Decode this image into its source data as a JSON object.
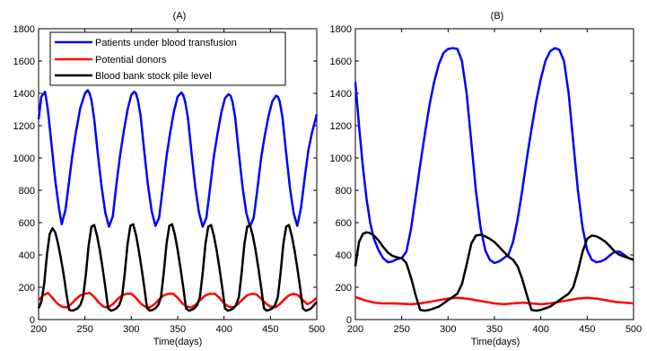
{
  "chart_data": [
    {
      "type": "line",
      "title": "(A)",
      "xlabel": "Time(days)",
      "ylabel": "",
      "xlim": [
        200,
        500
      ],
      "ylim": [
        0,
        1800
      ],
      "xticks": [
        "200",
        "250",
        "300",
        "350",
        "400",
        "450",
        "500"
      ],
      "yticks": [
        "0",
        "200",
        "400",
        "600",
        "800",
        "1000",
        "1200",
        "1400",
        "1600",
        "1800"
      ],
      "grid": false,
      "legend_position": "top-left",
      "series": [
        {
          "name": "Patients under blood transfusion",
          "color": "#0000ff",
          "x": [
            200,
            203,
            207,
            210,
            214,
            218,
            222,
            225,
            229,
            233,
            236,
            240,
            245,
            250,
            253,
            255,
            257,
            260,
            264,
            268,
            272,
            276,
            280,
            284,
            288,
            292,
            296,
            300,
            303,
            305,
            307,
            310,
            314,
            318,
            322,
            326,
            330,
            334,
            338,
            342,
            346,
            350,
            354,
            356,
            358,
            361,
            365,
            369,
            373,
            377,
            381,
            385,
            389,
            393,
            397,
            401,
            405,
            407,
            409,
            412,
            416,
            420,
            424,
            428,
            432,
            436,
            440,
            444,
            448,
            452,
            456,
            458,
            460,
            463,
            467,
            471,
            475,
            479,
            483,
            487,
            491,
            495,
            500
          ],
          "values": [
            1240,
            1380,
            1410,
            1300,
            1080,
            860,
            690,
            590,
            680,
            860,
            1000,
            1150,
            1310,
            1400,
            1420,
            1400,
            1360,
            1240,
            1020,
            820,
            660,
            575,
            640,
            840,
            1020,
            1170,
            1300,
            1390,
            1410,
            1400,
            1360,
            1260,
            1040,
            830,
            670,
            580,
            630,
            820,
            1010,
            1160,
            1290,
            1380,
            1405,
            1390,
            1350,
            1250,
            1030,
            820,
            660,
            575,
            630,
            820,
            1010,
            1150,
            1280,
            1370,
            1395,
            1385,
            1350,
            1250,
            1030,
            820,
            660,
            575,
            630,
            810,
            1000,
            1140,
            1260,
            1350,
            1385,
            1380,
            1350,
            1250,
            1030,
            820,
            660,
            580,
            690,
            880,
            1050,
            1160,
            1270
          ]
        },
        {
          "name": "Potential donors",
          "color": "#ff0000",
          "x": [
            200,
            205,
            210,
            215,
            220,
            225,
            230,
            235,
            240,
            245,
            250,
            255,
            260,
            265,
            270,
            275,
            280,
            285,
            290,
            295,
            300,
            305,
            310,
            315,
            320,
            325,
            330,
            335,
            340,
            345,
            350,
            355,
            360,
            365,
            370,
            375,
            380,
            385,
            390,
            395,
            400,
            405,
            410,
            415,
            420,
            425,
            430,
            435,
            440,
            445,
            450,
            455,
            460,
            465,
            470,
            475,
            480,
            485,
            490,
            495,
            500
          ],
          "values": [
            120,
            150,
            165,
            135,
            100,
            80,
            75,
            95,
            125,
            150,
            160,
            165,
            140,
            105,
            80,
            75,
            95,
            125,
            150,
            160,
            160,
            135,
            100,
            80,
            75,
            95,
            125,
            150,
            160,
            160,
            135,
            100,
            80,
            75,
            95,
            125,
            150,
            160,
            160,
            135,
            100,
            80,
            75,
            95,
            125,
            150,
            160,
            155,
            130,
            100,
            80,
            75,
            95,
            125,
            150,
            160,
            150,
            120,
            95,
            110,
            135
          ]
        },
        {
          "name": "Blood bank stock pile level",
          "color": "#000000",
          "x": [
            200,
            203,
            206,
            209,
            212,
            215,
            218,
            221,
            224,
            227,
            230,
            233,
            236,
            239,
            242,
            245,
            248,
            251,
            254,
            257,
            260,
            263,
            266,
            269,
            272,
            275,
            278,
            281,
            284,
            287,
            290,
            293,
            296,
            299,
            302,
            305,
            308,
            311,
            314,
            317,
            320,
            323,
            326,
            329,
            332,
            335,
            338,
            341,
            344,
            347,
            350,
            353,
            356,
            359,
            362,
            365,
            368,
            371,
            374,
            377,
            380,
            383,
            386,
            389,
            392,
            395,
            398,
            401,
            404,
            407,
            410,
            413,
            416,
            419,
            422,
            425,
            428,
            431,
            434,
            437,
            440,
            443,
            446,
            449,
            452,
            455,
            458,
            461,
            464,
            467,
            470,
            473,
            476,
            479,
            482,
            485,
            488,
            491,
            494,
            497,
            500
          ],
          "values": [
            70,
            110,
            220,
            400,
            530,
            565,
            540,
            470,
            380,
            280,
            160,
            60,
            55,
            60,
            70,
            90,
            140,
            280,
            460,
            575,
            585,
            520,
            430,
            320,
            200,
            70,
            55,
            60,
            70,
            90,
            140,
            290,
            470,
            580,
            590,
            525,
            430,
            320,
            200,
            70,
            55,
            60,
            70,
            90,
            140,
            290,
            470,
            580,
            590,
            525,
            430,
            320,
            200,
            70,
            55,
            60,
            70,
            90,
            140,
            290,
            470,
            575,
            585,
            520,
            430,
            320,
            200,
            70,
            55,
            60,
            70,
            90,
            140,
            290,
            470,
            575,
            585,
            520,
            430,
            320,
            200,
            70,
            55,
            60,
            70,
            90,
            140,
            290,
            470,
            575,
            585,
            520,
            430,
            320,
            200,
            70,
            55,
            60,
            70,
            90,
            110
          ]
        }
      ]
    },
    {
      "type": "line",
      "title": "(B)",
      "xlabel": "Time(days)",
      "ylabel": "",
      "xlim": [
        200,
        500
      ],
      "ylim": [
        0,
        1800
      ],
      "xticks": [
        "200",
        "250",
        "300",
        "350",
        "400",
        "450",
        "500"
      ],
      "yticks": [
        "0",
        "200",
        "400",
        "600",
        "800",
        "1000",
        "1200",
        "1400",
        "1600",
        "1800"
      ],
      "grid": false,
      "series": [
        {
          "color": "#0000ff",
          "x": [
            200,
            204,
            208,
            212,
            216,
            220,
            225,
            230,
            235,
            240,
            245,
            250,
            255,
            260,
            265,
            270,
            275,
            280,
            285,
            290,
            295,
            300,
            305,
            310,
            315,
            320,
            325,
            330,
            335,
            340,
            345,
            350,
            355,
            360,
            365,
            370,
            375,
            380,
            385,
            390,
            395,
            400,
            405,
            410,
            415,
            420,
            425,
            430,
            435,
            440,
            445,
            450,
            455,
            460,
            465,
            470,
            475,
            480,
            485,
            490,
            495,
            500
          ],
          "values": [
            1470,
            1200,
            950,
            750,
            600,
            500,
            430,
            380,
            355,
            360,
            375,
            380,
            420,
            560,
            760,
            960,
            1150,
            1330,
            1470,
            1580,
            1650,
            1675,
            1680,
            1675,
            1600,
            1400,
            1100,
            800,
            570,
            430,
            370,
            350,
            360,
            380,
            400,
            480,
            620,
            800,
            1000,
            1180,
            1350,
            1490,
            1600,
            1660,
            1680,
            1670,
            1600,
            1400,
            1100,
            800,
            570,
            430,
            370,
            355,
            360,
            375,
            400,
            420,
            420,
            400,
            380,
            370
          ]
        },
        {
          "color": "#ff0000",
          "x": [
            200,
            210,
            220,
            230,
            240,
            250,
            260,
            270,
            280,
            290,
            300,
            310,
            320,
            330,
            340,
            350,
            360,
            370,
            380,
            390,
            400,
            410,
            420,
            430,
            440,
            450,
            460,
            470,
            480,
            490,
            500
          ],
          "values": [
            140,
            120,
            105,
            100,
            100,
            98,
            95,
            100,
            110,
            120,
            130,
            135,
            130,
            120,
            110,
            100,
            95,
            100,
            105,
            100,
            95,
            100,
            110,
            120,
            130,
            135,
            130,
            120,
            110,
            105,
            100
          ]
        },
        {
          "color": "#000000",
          "x": [
            200,
            204,
            208,
            212,
            216,
            220,
            225,
            230,
            235,
            240,
            245,
            250,
            255,
            260,
            265,
            270,
            275,
            280,
            285,
            290,
            295,
            300,
            305,
            310,
            315,
            320,
            325,
            330,
            335,
            340,
            345,
            350,
            355,
            360,
            365,
            370,
            375,
            380,
            385,
            390,
            395,
            400,
            405,
            410,
            415,
            420,
            425,
            430,
            435,
            440,
            445,
            450,
            455,
            460,
            465,
            470,
            475,
            480,
            485,
            490,
            495,
            500
          ],
          "values": [
            330,
            480,
            530,
            540,
            535,
            520,
            490,
            450,
            415,
            395,
            385,
            380,
            350,
            260,
            150,
            60,
            55,
            60,
            70,
            80,
            100,
            120,
            140,
            160,
            220,
            340,
            470,
            520,
            525,
            515,
            500,
            480,
            450,
            420,
            390,
            370,
            330,
            250,
            150,
            60,
            55,
            60,
            70,
            80,
            100,
            120,
            140,
            160,
            200,
            300,
            420,
            500,
            520,
            515,
            500,
            480,
            450,
            420,
            400,
            390,
            380,
            370
          ]
        }
      ]
    }
  ]
}
